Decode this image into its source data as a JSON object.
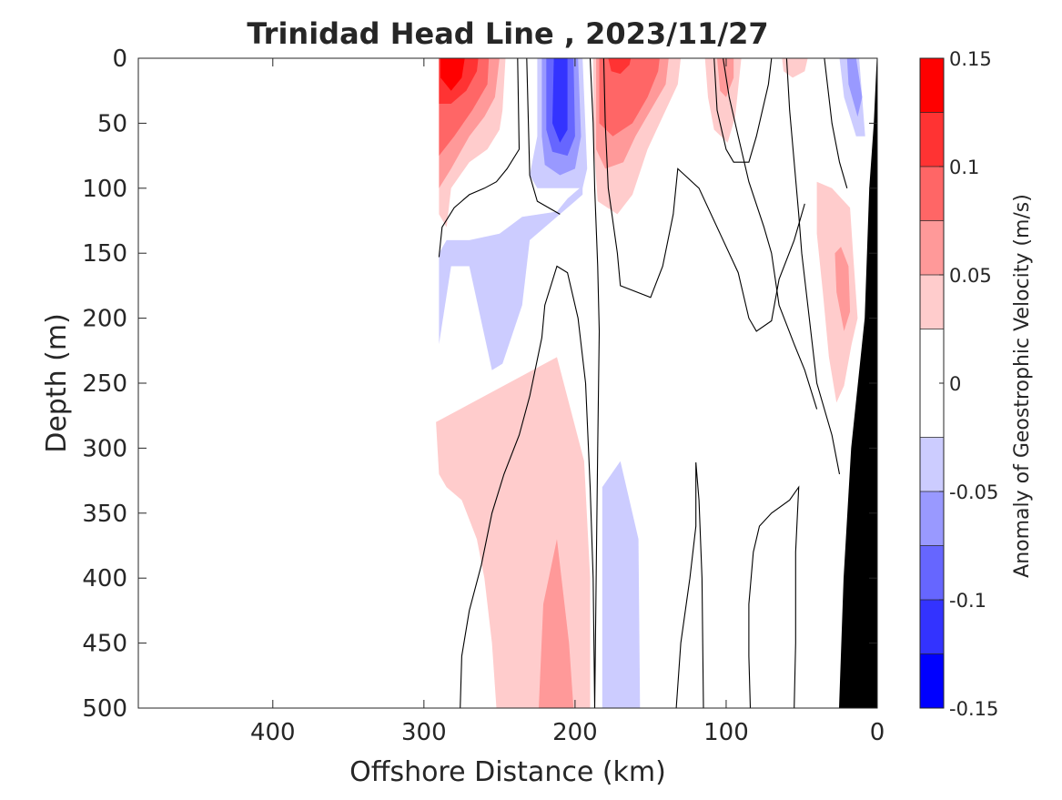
{
  "chart_data": {
    "type": "heatmap",
    "subtype": "filled-contour",
    "title": "Trinidad Head Line , 2023/11/27",
    "xlabel": "Offshore Distance (km)",
    "ylabel": "Depth (m)",
    "xlim": [
      489,
      0
    ],
    "x_reversed": true,
    "ylim": [
      0,
      500
    ],
    "y_reversed": true,
    "x_ticks": [
      400,
      300,
      200,
      100,
      0
    ],
    "y_ticks": [
      0,
      50,
      100,
      150,
      200,
      250,
      300,
      350,
      400,
      450,
      500
    ],
    "colorbar": {
      "label": "Anomaly of Geostrophic Velocity (m/s)",
      "range": [
        -0.15,
        0.15
      ],
      "levels": [
        -0.15,
        -0.125,
        -0.1,
        -0.075,
        -0.05,
        -0.025,
        0.025,
        0.05,
        0.075,
        0.1,
        0.125,
        0.15
      ],
      "tick_values": [
        0.15,
        0.1,
        0.05,
        0,
        -0.05,
        -0.1,
        -0.15
      ],
      "tick_labels": [
        "0.15",
        "0.1",
        "0.05",
        "0",
        "-0.05",
        "-0.1",
        "-0.15"
      ],
      "colors": [
        "#0000ff",
        "#3333ff",
        "#6666ff",
        "#9999ff",
        "#ccccff",
        "#ffffff",
        "#ffcccc",
        "#ff9999",
        "#ff6666",
        "#ff3333",
        "#ff0000"
      ]
    },
    "regions": [
      {
        "name": "neg-1",
        "level": -1,
        "pts": [
          [
            290,
            500
          ],
          [
            290,
            220
          ],
          [
            282,
            160
          ],
          [
            270,
            160
          ],
          [
            255,
            240
          ],
          [
            248,
            235
          ],
          [
            235,
            190
          ],
          [
            230,
            140
          ],
          [
            215,
            125
          ],
          [
            205,
            115
          ],
          [
            200,
            110
          ],
          [
            195,
            105
          ],
          [
            195,
            98
          ],
          [
            205,
            108
          ],
          [
            212,
            118
          ],
          [
            235,
            122
          ],
          [
            250,
            135
          ],
          [
            270,
            140
          ],
          [
            285,
            140
          ],
          [
            290,
            150
          ]
        ]
      },
      {
        "name": "neg-2",
        "level": -1,
        "pts": [
          [
            225,
            0
          ],
          [
            225,
            60
          ],
          [
            230,
            90
          ],
          [
            225,
            100
          ],
          [
            215,
            100
          ],
          [
            195,
            100
          ],
          [
            192,
            85
          ],
          [
            195,
            0
          ]
        ]
      },
      {
        "name": "neg-3",
        "level": -2,
        "pts": [
          [
            222,
            0
          ],
          [
            222,
            60
          ],
          [
            220,
            82
          ],
          [
            210,
            90
          ],
          [
            200,
            85
          ],
          [
            196,
            60
          ],
          [
            198,
            0
          ]
        ]
      },
      {
        "name": "neg-4",
        "level": -3,
        "pts": [
          [
            219,
            0
          ],
          [
            219,
            55
          ],
          [
            215,
            72
          ],
          [
            205,
            75
          ],
          [
            200,
            60
          ],
          [
            201,
            0
          ]
        ]
      },
      {
        "name": "neg-5",
        "level": -4,
        "pts": [
          [
            214,
            0
          ],
          [
            215,
            50
          ],
          [
            210,
            65
          ],
          [
            205,
            55
          ],
          [
            205,
            0
          ]
        ]
      },
      {
        "name": "neg-6",
        "level": -1,
        "pts": [
          [
            182,
            500
          ],
          [
            182,
            330
          ],
          [
            170,
            310
          ],
          [
            158,
            370
          ],
          [
            157,
            500
          ]
        ]
      },
      {
        "name": "neg-7",
        "level": -1,
        "pts": [
          [
            25,
            0
          ],
          [
            22,
            30
          ],
          [
            14,
            60
          ],
          [
            8,
            60
          ],
          [
            12,
            0
          ]
        ]
      },
      {
        "name": "neg-8",
        "level": -2,
        "pts": [
          [
            20,
            0
          ],
          [
            19,
            20
          ],
          [
            13,
            45
          ],
          [
            10,
            30
          ],
          [
            14,
            0
          ]
        ]
      },
      {
        "name": "pos-1",
        "level": 1,
        "pts": [
          [
            290,
            0
          ],
          [
            290,
            120
          ],
          [
            285,
            130
          ],
          [
            282,
            100
          ],
          [
            270,
            80
          ],
          [
            258,
            70
          ],
          [
            250,
            55
          ],
          [
            248,
            40
          ],
          [
            246,
            0
          ]
        ]
      },
      {
        "name": "pos-2",
        "level": 2,
        "pts": [
          [
            290,
            0
          ],
          [
            290,
            100
          ],
          [
            282,
            85
          ],
          [
            270,
            60
          ],
          [
            260,
            45
          ],
          [
            253,
            30
          ],
          [
            250,
            0
          ]
        ]
      },
      {
        "name": "pos-3",
        "level": 3,
        "pts": [
          [
            290,
            0
          ],
          [
            290,
            75
          ],
          [
            280,
            60
          ],
          [
            268,
            40
          ],
          [
            258,
            20
          ],
          [
            257,
            0
          ]
        ]
      },
      {
        "name": "pos-4",
        "level": 4,
        "pts": [
          [
            290,
            0
          ],
          [
            290,
            35
          ],
          [
            282,
            35
          ],
          [
            272,
            25
          ],
          [
            265,
            10
          ],
          [
            264,
            0
          ]
        ]
      },
      {
        "name": "pos-5",
        "level": 5,
        "pts": [
          [
            289,
            0
          ],
          [
            289,
            15
          ],
          [
            282,
            25
          ],
          [
            275,
            15
          ],
          [
            273,
            0
          ]
        ]
      },
      {
        "name": "pos-6",
        "level": 1,
        "pts": [
          [
            188,
            0
          ],
          [
            188,
            60
          ],
          [
            185,
            110
          ],
          [
            172,
            120
          ],
          [
            162,
            105
          ],
          [
            152,
            70
          ],
          [
            140,
            40
          ],
          [
            132,
            20
          ],
          [
            130,
            0
          ]
        ]
      },
      {
        "name": "pos-7",
        "level": 2,
        "pts": [
          [
            186,
            0
          ],
          [
            186,
            70
          ],
          [
            180,
            85
          ],
          [
            168,
            80
          ],
          [
            160,
            60
          ],
          [
            150,
            40
          ],
          [
            140,
            20
          ],
          [
            138,
            0
          ]
        ]
      },
      {
        "name": "pos-8",
        "level": 3,
        "pts": [
          [
            184,
            0
          ],
          [
            184,
            50
          ],
          [
            175,
            60
          ],
          [
            162,
            50
          ],
          [
            152,
            30
          ],
          [
            145,
            10
          ],
          [
            144,
            0
          ]
        ]
      },
      {
        "name": "pos-9",
        "level": 4,
        "pts": [
          [
            178,
            0
          ],
          [
            176,
            10
          ],
          [
            170,
            12
          ],
          [
            164,
            5
          ],
          [
            163,
            0
          ]
        ]
      },
      {
        "name": "pos-10",
        "level": 1,
        "pts": [
          [
            114,
            0
          ],
          [
            112,
            30
          ],
          [
            108,
            55
          ],
          [
            99,
            65
          ],
          [
            94,
            45
          ],
          [
            90,
            0
          ]
        ]
      },
      {
        "name": "pos-11",
        "level": 2,
        "pts": [
          [
            106,
            0
          ],
          [
            104,
            25
          ],
          [
            100,
            30
          ],
          [
            95,
            15
          ],
          [
            95,
            0
          ]
        ]
      },
      {
        "name": "pos-12",
        "level": 1,
        "pts": [
          [
            63,
            0
          ],
          [
            62,
            10
          ],
          [
            56,
            15
          ],
          [
            48,
            10
          ],
          [
            46,
            0
          ]
        ]
      },
      {
        "name": "pos-13",
        "level": 1,
        "pts": [
          [
            40,
            95
          ],
          [
            40,
            135
          ],
          [
            36,
            180
          ],
          [
            32,
            230
          ],
          [
            27,
            265
          ],
          [
            22,
            252
          ],
          [
            17,
            220
          ],
          [
            13,
            200
          ],
          [
            16,
            150
          ],
          [
            18,
            115
          ],
          [
            30,
            100
          ]
        ]
      },
      {
        "name": "pos-14",
        "level": 2,
        "pts": [
          [
            28,
            150
          ],
          [
            27,
            180
          ],
          [
            22,
            210
          ],
          [
            18,
            195
          ],
          [
            19,
            160
          ],
          [
            24,
            145
          ]
        ]
      },
      {
        "name": "pos-15",
        "level": 1,
        "pts": [
          [
            252,
            500
          ],
          [
            255,
            450
          ],
          [
            260,
            400
          ],
          [
            265,
            370
          ],
          [
            275,
            340
          ],
          [
            285,
            330
          ],
          [
            290,
            320
          ],
          [
            292,
            280
          ],
          [
            212,
            230
          ],
          [
            194,
            310
          ],
          [
            190,
            400
          ],
          [
            190,
            500
          ]
        ]
      },
      {
        "name": "pos-16",
        "level": 2,
        "pts": [
          [
            224,
            500
          ],
          [
            221,
            420
          ],
          [
            212,
            370
          ],
          [
            204,
            450
          ],
          [
            201,
            500
          ]
        ]
      }
    ],
    "contour_lines": [
      [
        [
          290,
          153
        ],
        [
          288,
          130
        ],
        [
          280,
          115
        ],
        [
          270,
          105
        ],
        [
          260,
          100
        ],
        [
          252,
          95
        ],
        [
          245,
          85
        ],
        [
          237,
          70
        ],
        [
          238,
          0
        ]
      ],
      [
        [
          232,
          0
        ],
        [
          230,
          90
        ],
        [
          225,
          110
        ],
        [
          210,
          120
        ]
      ],
      [
        [
          190,
          0
        ],
        [
          188,
          50
        ],
        [
          187,
          100
        ],
        [
          185,
          160
        ],
        [
          184,
          210
        ],
        [
          185,
          300
        ],
        [
          186,
          400
        ],
        [
          187,
          500
        ]
      ],
      [
        [
          276,
          500
        ],
        [
          275,
          460
        ],
        [
          270,
          425
        ],
        [
          262,
          390
        ],
        [
          255,
          350
        ],
        [
          247,
          320
        ],
        [
          237,
          290
        ],
        [
          230,
          260
        ],
        [
          222,
          215
        ],
        [
          220,
          190
        ],
        [
          212,
          160
        ],
        [
          205,
          165
        ],
        [
          198,
          200
        ],
        [
          193,
          250
        ],
        [
          190,
          330
        ],
        [
          188,
          400
        ],
        [
          187,
          500
        ]
      ],
      [
        [
          181,
          0
        ],
        [
          180,
          50
        ],
        [
          178,
          100
        ],
        [
          172,
          150
        ],
        [
          170,
          175
        ],
        [
          150,
          184
        ],
        [
          142,
          160
        ],
        [
          135,
          120
        ],
        [
          132,
          85
        ],
        [
          118,
          100
        ],
        [
          104,
          135
        ],
        [
          92,
          165
        ],
        [
          85,
          200
        ],
        [
          80,
          210
        ],
        [
          70,
          202
        ],
        [
          65,
          170
        ],
        [
          55,
          140
        ],
        [
          48,
          112
        ]
      ],
      [
        [
          133,
          500
        ],
        [
          130,
          450
        ],
        [
          124,
          400
        ],
        [
          120,
          360
        ],
        [
          120,
          311
        ],
        [
          118,
          340
        ],
        [
          116,
          400
        ],
        [
          115,
          500
        ]
      ],
      [
        [
          84,
          500
        ],
        [
          85,
          460
        ],
        [
          85,
          420
        ],
        [
          82,
          380
        ],
        [
          78,
          360
        ],
        [
          70,
          350
        ],
        [
          58,
          340
        ],
        [
          52,
          330
        ],
        [
          54,
          380
        ],
        [
          54,
          450
        ],
        [
          55,
          500
        ]
      ],
      [
        [
          108,
          0
        ],
        [
          106,
          40
        ],
        [
          100,
          70
        ],
        [
          95,
          80
        ],
        [
          85,
          80
        ],
        [
          80,
          60
        ],
        [
          72,
          20
        ],
        [
          70,
          0
        ]
      ],
      [
        [
          102,
          0
        ],
        [
          98,
          30
        ],
        [
          92,
          60
        ],
        [
          85,
          95
        ],
        [
          75,
          130
        ],
        [
          70,
          150
        ],
        [
          65,
          190
        ],
        [
          60,
          205
        ],
        [
          55,
          220
        ],
        [
          48,
          240
        ],
        [
          40,
          270
        ]
      ],
      [
        [
          60,
          0
        ],
        [
          58,
          40
        ],
        [
          55,
          80
        ],
        [
          52,
          120
        ],
        [
          50,
          150
        ],
        [
          45,
          200
        ],
        [
          40,
          250
        ],
        [
          30,
          290
        ],
        [
          25,
          320
        ]
      ],
      [
        [
          35,
          0
        ],
        [
          30,
          50
        ],
        [
          25,
          80
        ],
        [
          20,
          100
        ]
      ]
    ],
    "bathymetry": [
      [
        0,
        0
      ],
      [
        0,
        500
      ],
      [
        25,
        500
      ],
      [
        22,
        400
      ],
      [
        17,
        300
      ],
      [
        8,
        200
      ],
      [
        5,
        100
      ],
      [
        2,
        50
      ]
    ]
  }
}
